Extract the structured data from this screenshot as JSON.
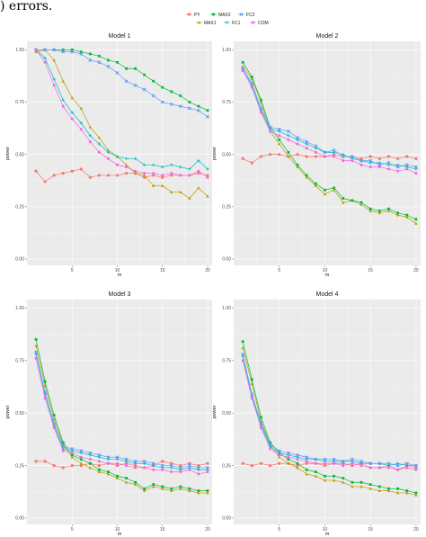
{
  "caption": ") errors.",
  "colors": {
    "PY": "#F8766D",
    "MAX1": "#B79F00",
    "MAX2": "#00BA38",
    "FC1": "#00BFC4",
    "FC2": "#619CFF",
    "COM": "#F564E3",
    "panel_bg": "#EBEBEB",
    "grid": "#FFFFFF"
  },
  "chart_data": [
    {
      "type": "line",
      "title": "Model 1",
      "xlabel": "m",
      "ylabel": "power",
      "xlim": [
        0,
        20.5
      ],
      "ylim": [
        -0.03,
        1.04
      ],
      "xticks": [
        5,
        10,
        15,
        20
      ],
      "yticks": [
        0.0,
        0.25,
        0.5,
        0.75,
        1.0
      ],
      "ytick_labels": [
        "0.00",
        "0.25",
        "0.50",
        "0.75",
        "1.00"
      ],
      "x": [
        1,
        2,
        3,
        4,
        5,
        6,
        7,
        8,
        9,
        10,
        11,
        12,
        13,
        14,
        15,
        16,
        17,
        18,
        19,
        20
      ],
      "series": [
        {
          "name": "PY",
          "values": [
            0.42,
            0.37,
            0.4,
            0.41,
            0.42,
            0.43,
            0.39,
            0.4,
            0.4,
            0.4,
            0.41,
            0.41,
            0.39,
            0.4,
            0.39,
            0.4,
            0.4,
            0.4,
            0.41,
            0.4
          ]
        },
        {
          "name": "MAX1",
          "values": [
            0.99,
            1.0,
            0.95,
            0.85,
            0.77,
            0.72,
            0.63,
            0.58,
            0.52,
            0.49,
            0.45,
            0.41,
            0.4,
            0.35,
            0.35,
            0.32,
            0.32,
            0.29,
            0.34,
            0.3
          ]
        },
        {
          "name": "MAX2",
          "values": [
            1.0,
            1.0,
            1.0,
            1.0,
            1.0,
            0.99,
            0.98,
            0.97,
            0.95,
            0.94,
            0.91,
            0.91,
            0.88,
            0.85,
            0.82,
            0.8,
            0.78,
            0.75,
            0.73,
            0.71
          ]
        },
        {
          "name": "FC1",
          "values": [
            1.0,
            0.96,
            0.86,
            0.76,
            0.7,
            0.65,
            0.59,
            0.55,
            0.51,
            0.49,
            0.48,
            0.48,
            0.45,
            0.45,
            0.44,
            0.45,
            0.44,
            0.43,
            0.47,
            0.43
          ]
        },
        {
          "name": "FC2",
          "values": [
            1.0,
            1.0,
            1.0,
            0.99,
            0.99,
            0.98,
            0.95,
            0.94,
            0.92,
            0.89,
            0.85,
            0.83,
            0.81,
            0.78,
            0.75,
            0.74,
            0.73,
            0.72,
            0.71,
            0.68
          ]
        },
        {
          "name": "COM",
          "values": [
            1.0,
            0.94,
            0.83,
            0.73,
            0.67,
            0.62,
            0.56,
            0.51,
            0.48,
            0.45,
            0.44,
            0.42,
            0.41,
            0.41,
            0.4,
            0.41,
            0.4,
            0.4,
            0.42,
            0.39
          ]
        }
      ]
    },
    {
      "type": "line",
      "title": "Model 2",
      "xlabel": "m",
      "ylabel": "power",
      "xlim": [
        0,
        20.5
      ],
      "ylim": [
        -0.03,
        1.04
      ],
      "xticks": [
        5,
        10,
        15,
        20
      ],
      "yticks": [
        0.0,
        0.25,
        0.5,
        0.75,
        1.0
      ],
      "ytick_labels": [
        "0.00",
        "0.25",
        "0.50",
        "0.75",
        "1.00"
      ],
      "x": [
        1,
        2,
        3,
        4,
        5,
        6,
        7,
        8,
        9,
        10,
        11,
        12,
        13,
        14,
        15,
        16,
        17,
        18,
        19,
        20
      ],
      "series": [
        {
          "name": "PY",
          "values": [
            0.48,
            0.46,
            0.49,
            0.5,
            0.5,
            0.49,
            0.5,
            0.49,
            0.49,
            0.49,
            0.5,
            0.49,
            0.49,
            0.48,
            0.49,
            0.48,
            0.49,
            0.48,
            0.49,
            0.48
          ]
        },
        {
          "name": "MAX1",
          "values": [
            0.92,
            0.86,
            0.75,
            0.61,
            0.55,
            0.49,
            0.44,
            0.39,
            0.35,
            0.31,
            0.33,
            0.27,
            0.28,
            0.26,
            0.23,
            0.22,
            0.23,
            0.21,
            0.2,
            0.17
          ]
        },
        {
          "name": "MAX2",
          "values": [
            0.94,
            0.87,
            0.76,
            0.63,
            0.57,
            0.51,
            0.45,
            0.4,
            0.36,
            0.33,
            0.34,
            0.29,
            0.28,
            0.27,
            0.24,
            0.23,
            0.24,
            0.22,
            0.21,
            0.19
          ]
        },
        {
          "name": "FC1",
          "values": [
            0.91,
            0.83,
            0.71,
            0.62,
            0.61,
            0.59,
            0.57,
            0.55,
            0.53,
            0.51,
            0.51,
            0.5,
            0.48,
            0.47,
            0.46,
            0.46,
            0.45,
            0.45,
            0.44,
            0.43
          ]
        },
        {
          "name": "FC2",
          "values": [
            0.91,
            0.84,
            0.72,
            0.63,
            0.62,
            0.61,
            0.58,
            0.56,
            0.54,
            0.51,
            0.52,
            0.49,
            0.49,
            0.47,
            0.47,
            0.45,
            0.46,
            0.44,
            0.45,
            0.44
          ]
        },
        {
          "name": "COM",
          "values": [
            0.9,
            0.82,
            0.7,
            0.61,
            0.59,
            0.57,
            0.55,
            0.53,
            0.51,
            0.49,
            0.49,
            0.47,
            0.47,
            0.45,
            0.44,
            0.44,
            0.43,
            0.42,
            0.43,
            0.41
          ]
        }
      ]
    },
    {
      "type": "line",
      "title": "Model 3",
      "xlabel": "m",
      "ylabel": "power",
      "xlim": [
        0,
        20.5
      ],
      "ylim": [
        -0.03,
        1.04
      ],
      "xticks": [
        5,
        10,
        15,
        20
      ],
      "yticks": [
        0.0,
        0.25,
        0.5,
        0.75,
        1.0
      ],
      "ytick_labels": [
        "0.00",
        "0.25",
        "0.50",
        "0.75",
        "1.00"
      ],
      "x": [
        1,
        2,
        3,
        4,
        5,
        6,
        7,
        8,
        9,
        10,
        11,
        12,
        13,
        14,
        15,
        16,
        17,
        18,
        19,
        20
      ],
      "series": [
        {
          "name": "PY",
          "values": [
            0.27,
            0.27,
            0.25,
            0.24,
            0.25,
            0.25,
            0.26,
            0.25,
            0.26,
            0.25,
            0.26,
            0.25,
            0.24,
            0.25,
            0.27,
            0.26,
            0.25,
            0.26,
            0.25,
            0.26
          ]
        },
        {
          "name": "MAX1",
          "values": [
            0.82,
            0.63,
            0.47,
            0.35,
            0.29,
            0.26,
            0.24,
            0.22,
            0.21,
            0.19,
            0.17,
            0.16,
            0.13,
            0.15,
            0.14,
            0.13,
            0.14,
            0.13,
            0.12,
            0.12
          ]
        },
        {
          "name": "MAX2",
          "values": [
            0.85,
            0.65,
            0.49,
            0.36,
            0.3,
            0.28,
            0.26,
            0.23,
            0.22,
            0.2,
            0.19,
            0.17,
            0.14,
            0.16,
            0.15,
            0.14,
            0.15,
            0.14,
            0.13,
            0.13
          ]
        },
        {
          "name": "FC1",
          "values": [
            0.78,
            0.59,
            0.44,
            0.33,
            0.32,
            0.31,
            0.3,
            0.29,
            0.28,
            0.28,
            0.27,
            0.26,
            0.26,
            0.25,
            0.24,
            0.24,
            0.23,
            0.24,
            0.23,
            0.23
          ]
        },
        {
          "name": "FC2",
          "values": [
            0.79,
            0.6,
            0.45,
            0.34,
            0.33,
            0.32,
            0.31,
            0.3,
            0.29,
            0.29,
            0.28,
            0.27,
            0.27,
            0.26,
            0.25,
            0.25,
            0.24,
            0.25,
            0.24,
            0.24
          ]
        },
        {
          "name": "COM",
          "values": [
            0.76,
            0.57,
            0.43,
            0.32,
            0.31,
            0.29,
            0.28,
            0.27,
            0.26,
            0.26,
            0.25,
            0.24,
            0.24,
            0.23,
            0.23,
            0.22,
            0.22,
            0.23,
            0.21,
            0.22
          ]
        }
      ]
    },
    {
      "type": "line",
      "title": "Model 4",
      "xlabel": "m",
      "ylabel": "power",
      "xlim": [
        0,
        20.5
      ],
      "ylim": [
        -0.03,
        1.04
      ],
      "xticks": [
        5,
        10,
        15,
        20
      ],
      "yticks": [
        0.0,
        0.25,
        0.5,
        0.75,
        1.0
      ],
      "ytick_labels": [
        "0.00",
        "0.25",
        "0.50",
        "0.75",
        "1.00"
      ],
      "x": [
        1,
        2,
        3,
        4,
        5,
        6,
        7,
        8,
        9,
        10,
        11,
        12,
        13,
        14,
        15,
        16,
        17,
        18,
        19,
        20
      ],
      "series": [
        {
          "name": "PY",
          "values": [
            0.26,
            0.25,
            0.26,
            0.25,
            0.26,
            0.26,
            0.25,
            0.26,
            0.26,
            0.25,
            0.26,
            0.26,
            0.25,
            0.26,
            0.24,
            0.24,
            0.25,
            0.23,
            0.25,
            0.24
          ]
        },
        {
          "name": "MAX1",
          "values": [
            0.81,
            0.64,
            0.46,
            0.35,
            0.29,
            0.26,
            0.24,
            0.21,
            0.2,
            0.18,
            0.18,
            0.17,
            0.15,
            0.15,
            0.14,
            0.13,
            0.13,
            0.12,
            0.12,
            0.11
          ]
        },
        {
          "name": "MAX2",
          "values": [
            0.84,
            0.66,
            0.48,
            0.36,
            0.31,
            0.28,
            0.26,
            0.23,
            0.22,
            0.2,
            0.2,
            0.19,
            0.17,
            0.17,
            0.16,
            0.15,
            0.14,
            0.14,
            0.13,
            0.12
          ]
        },
        {
          "name": "FC1",
          "values": [
            0.77,
            0.58,
            0.44,
            0.34,
            0.31,
            0.3,
            0.29,
            0.28,
            0.28,
            0.27,
            0.27,
            0.27,
            0.27,
            0.26,
            0.26,
            0.26,
            0.25,
            0.26,
            0.25,
            0.25
          ]
        },
        {
          "name": "FC2",
          "values": [
            0.78,
            0.59,
            0.45,
            0.35,
            0.32,
            0.31,
            0.3,
            0.29,
            0.28,
            0.28,
            0.28,
            0.27,
            0.28,
            0.27,
            0.26,
            0.26,
            0.26,
            0.25,
            0.26,
            0.25
          ]
        },
        {
          "name": "COM",
          "values": [
            0.75,
            0.57,
            0.43,
            0.33,
            0.3,
            0.29,
            0.28,
            0.27,
            0.26,
            0.26,
            0.26,
            0.25,
            0.26,
            0.25,
            0.24,
            0.24,
            0.24,
            0.23,
            0.24,
            0.23
          ]
        }
      ]
    }
  ],
  "legend": {
    "placement": "top-center",
    "entries": [
      "PY",
      "MAX1",
      "MAX2",
      "FC1",
      "FC2",
      "COM"
    ]
  }
}
